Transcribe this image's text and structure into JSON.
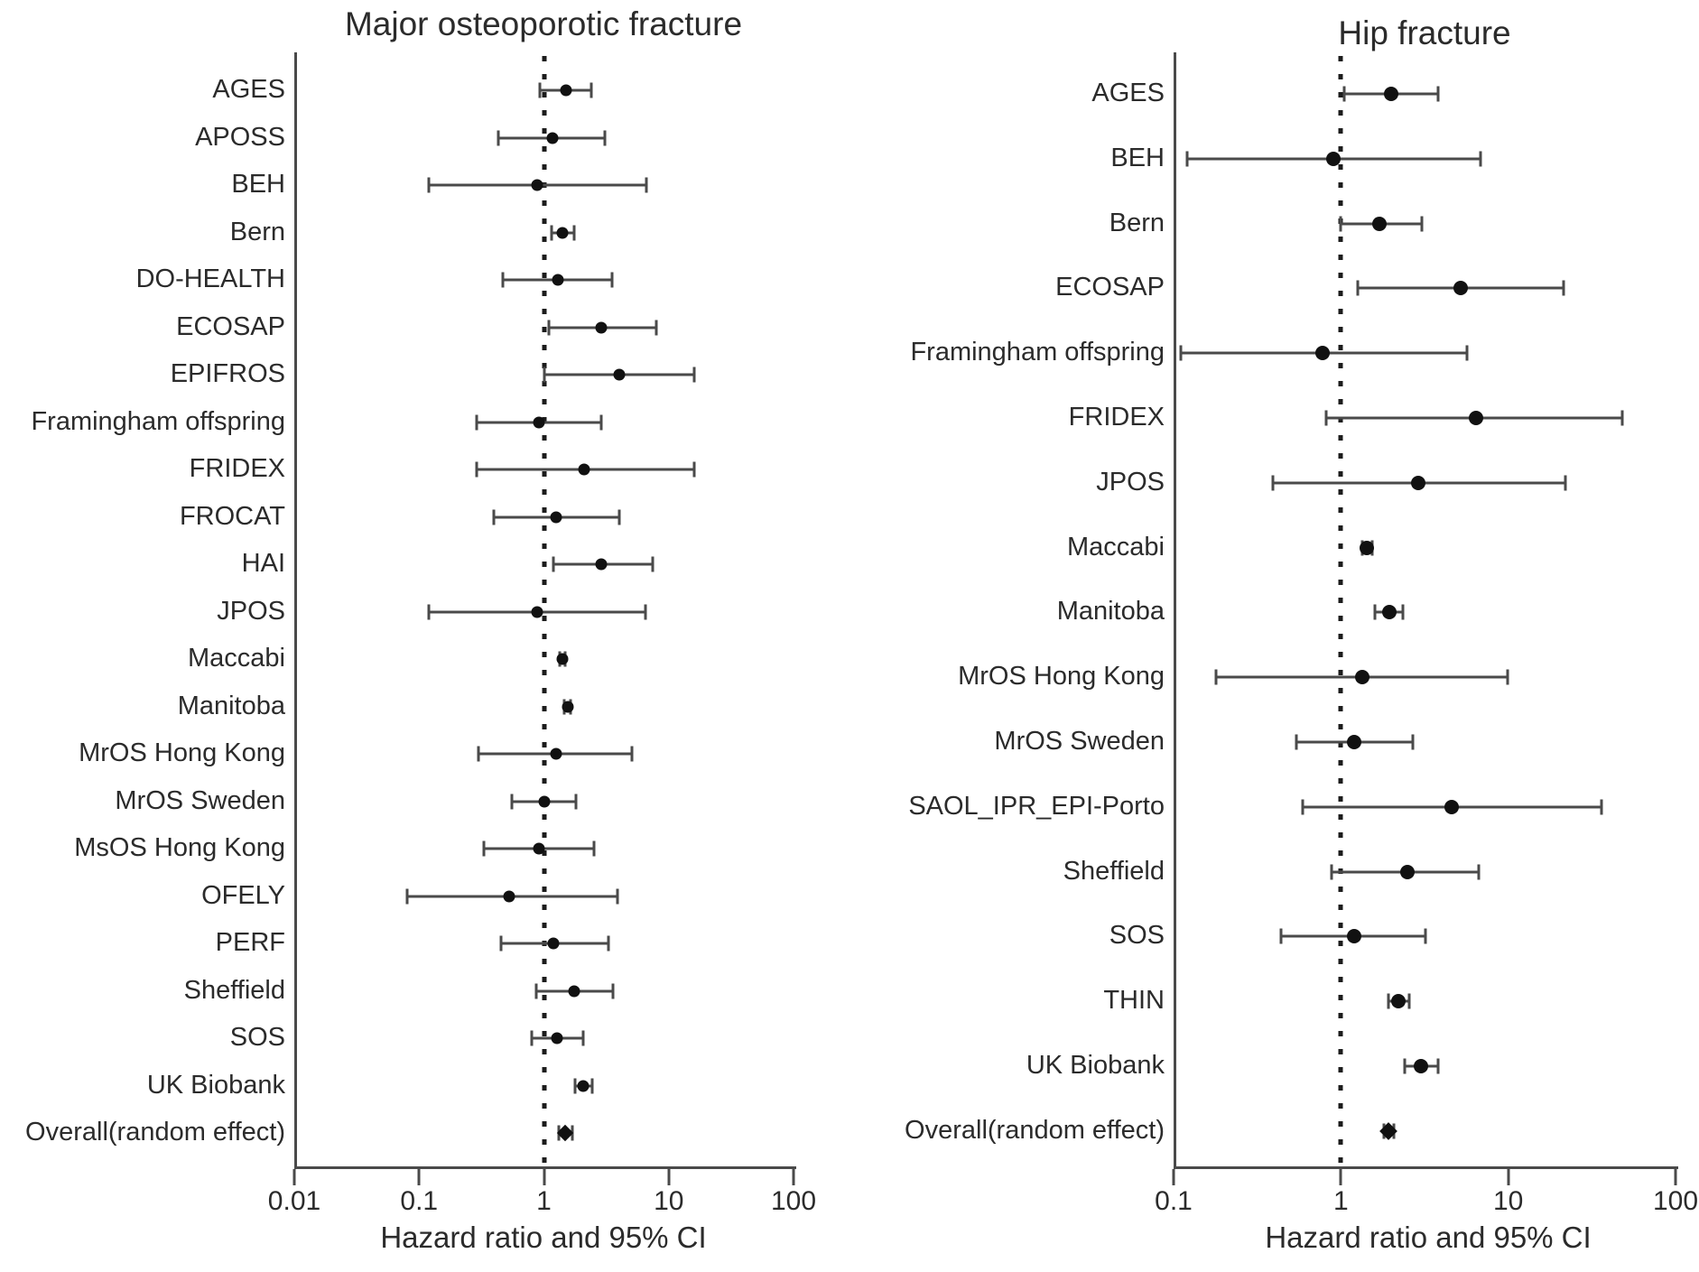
{
  "chart_data": [
    {
      "type": "scatter",
      "subtype": "forest_plot",
      "title": "Major osteoporotic fracture",
      "xlabel": "Hazard ratio and 95% CI",
      "axis_scale": "log",
      "xlim": [
        0.01,
        100
      ],
      "reference_line": 1,
      "grid": false,
      "ticks": [
        "0.01",
        "0.1",
        "1",
        "10",
        "100"
      ],
      "tick_values": [
        0.01,
        0.1,
        1,
        10,
        100
      ],
      "rows": [
        {
          "label": "AGES",
          "hr": 1.5,
          "lo": 0.93,
          "hi": 2.4,
          "marker": "circle"
        },
        {
          "label": "APOSS",
          "hr": 1.17,
          "lo": 0.43,
          "hi": 3.1,
          "marker": "circle"
        },
        {
          "label": "BEH",
          "hr": 0.88,
          "lo": 0.12,
          "hi": 6.6,
          "marker": "circle"
        },
        {
          "label": "Bern",
          "hr": 1.4,
          "lo": 1.15,
          "hi": 1.75,
          "marker": "circle"
        },
        {
          "label": "DO-HEALTH",
          "hr": 1.3,
          "lo": 0.47,
          "hi": 3.5,
          "marker": "circle"
        },
        {
          "label": "ECOSAP",
          "hr": 2.9,
          "lo": 1.1,
          "hi": 7.9,
          "marker": "circle"
        },
        {
          "label": "EPIFROS",
          "hr": 4.0,
          "lo": 1.0,
          "hi": 16.0,
          "marker": "circle"
        },
        {
          "label": "Framingham offspring",
          "hr": 0.92,
          "lo": 0.29,
          "hi": 2.9,
          "marker": "circle"
        },
        {
          "label": "FRIDEX",
          "hr": 2.1,
          "lo": 0.29,
          "hi": 16.0,
          "marker": "circle"
        },
        {
          "label": "FROCAT",
          "hr": 1.25,
          "lo": 0.4,
          "hi": 4.0,
          "marker": "circle"
        },
        {
          "label": "HAI",
          "hr": 2.9,
          "lo": 1.2,
          "hi": 7.4,
          "marker": "circle"
        },
        {
          "label": "JPOS",
          "hr": 0.88,
          "lo": 0.12,
          "hi": 6.5,
          "marker": "circle"
        },
        {
          "label": "Maccabi",
          "hr": 1.4,
          "lo": 1.33,
          "hi": 1.48,
          "marker": "circle"
        },
        {
          "label": "Manitoba",
          "hr": 1.55,
          "lo": 1.46,
          "hi": 1.64,
          "marker": "circle"
        },
        {
          "label": "MrOS Hong Kong",
          "hr": 1.25,
          "lo": 0.3,
          "hi": 5.1,
          "marker": "circle"
        },
        {
          "label": "MrOS Sweden",
          "hr": 1.0,
          "lo": 0.55,
          "hi": 1.8,
          "marker": "circle"
        },
        {
          "label": "MsOS Hong Kong",
          "hr": 0.91,
          "lo": 0.33,
          "hi": 2.5,
          "marker": "circle"
        },
        {
          "label": "OFELY",
          "hr": 0.53,
          "lo": 0.08,
          "hi": 3.9,
          "marker": "circle"
        },
        {
          "label": "PERF",
          "hr": 1.2,
          "lo": 0.45,
          "hi": 3.3,
          "marker": "circle"
        },
        {
          "label": "Sheffield",
          "hr": 1.75,
          "lo": 0.87,
          "hi": 3.6,
          "marker": "circle"
        },
        {
          "label": "SOS",
          "hr": 1.28,
          "lo": 0.8,
          "hi": 2.05,
          "marker": "circle"
        },
        {
          "label": "UK Biobank",
          "hr": 2.05,
          "lo": 1.78,
          "hi": 2.42,
          "marker": "circle"
        },
        {
          "label": "Overall(random effect)",
          "hr": 1.49,
          "lo": 1.32,
          "hi": 1.68,
          "marker": "diamond"
        }
      ]
    },
    {
      "type": "scatter",
      "subtype": "forest_plot",
      "title": "Hip fracture",
      "xlabel": "Hazard ratio and 95% CI",
      "axis_scale": "log",
      "xlim": [
        0.1,
        100
      ],
      "reference_line": 1,
      "grid": false,
      "ticks": [
        "0.1",
        "1",
        "10",
        "100"
      ],
      "tick_values": [
        0.1,
        1,
        10,
        100
      ],
      "rows": [
        {
          "label": "AGES",
          "hr": 2.0,
          "lo": 1.05,
          "hi": 3.8,
          "marker": "circle"
        },
        {
          "label": "BEH",
          "hr": 0.9,
          "lo": 0.12,
          "hi": 6.8,
          "marker": "circle"
        },
        {
          "label": "Bern",
          "hr": 1.7,
          "lo": 1.0,
          "hi": 3.05,
          "marker": "circle"
        },
        {
          "label": "ECOSAP",
          "hr": 5.2,
          "lo": 1.26,
          "hi": 21.5,
          "marker": "circle"
        },
        {
          "label": "Framingham offspring",
          "hr": 0.78,
          "lo": 0.11,
          "hi": 5.7,
          "marker": "circle"
        },
        {
          "label": "FRIDEX",
          "hr": 6.4,
          "lo": 0.82,
          "hi": 48.0,
          "marker": "circle"
        },
        {
          "label": "JPOS",
          "hr": 2.9,
          "lo": 0.39,
          "hi": 22.0,
          "marker": "circle"
        },
        {
          "label": "Maccabi",
          "hr": 1.43,
          "lo": 1.34,
          "hi": 1.53,
          "marker": "circle"
        },
        {
          "label": "Manitoba",
          "hr": 1.95,
          "lo": 1.6,
          "hi": 2.35,
          "marker": "circle"
        },
        {
          "label": "MrOS Hong Kong",
          "hr": 1.34,
          "lo": 0.18,
          "hi": 9.9,
          "marker": "circle"
        },
        {
          "label": "MrOS Sweden",
          "hr": 1.2,
          "lo": 0.54,
          "hi": 2.7,
          "marker": "circle"
        },
        {
          "label": "SAOL_IPR_EPI-Porto",
          "hr": 4.6,
          "lo": 0.59,
          "hi": 36.0,
          "marker": "circle"
        },
        {
          "label": "Sheffield",
          "hr": 2.5,
          "lo": 0.88,
          "hi": 6.7,
          "marker": "circle"
        },
        {
          "label": "SOS",
          "hr": 1.2,
          "lo": 0.44,
          "hi": 3.2,
          "marker": "circle"
        },
        {
          "label": "THIN",
          "hr": 2.2,
          "lo": 1.92,
          "hi": 2.55,
          "marker": "circle"
        },
        {
          "label": "UK Biobank",
          "hr": 3.0,
          "lo": 2.4,
          "hi": 3.8,
          "marker": "circle"
        },
        {
          "label": "Overall(random effect)",
          "hr": 1.93,
          "lo": 1.8,
          "hi": 2.08,
          "marker": "diamond"
        }
      ]
    }
  ]
}
